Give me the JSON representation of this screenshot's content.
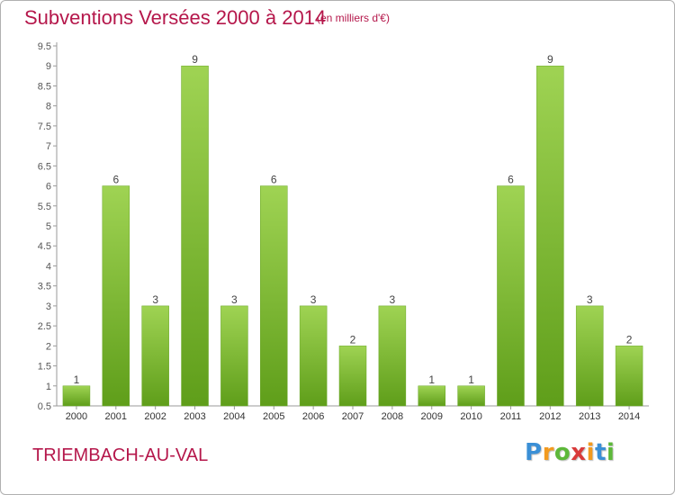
{
  "header": {
    "title": "Subventions Versées 2000 à 2014",
    "subtitle": "(en milliers d'€)"
  },
  "footer": {
    "commune": "TRIEMBACH-AU-VAL",
    "logo_letters": [
      {
        "char": "P",
        "color": "#3a8fd6"
      },
      {
        "char": "r",
        "color": "#f29a1f"
      },
      {
        "char": "o",
        "color": "#5db83a"
      },
      {
        "char": "x",
        "color": "#d93a3a"
      },
      {
        "char": "i",
        "color": "#f29a1f"
      },
      {
        "char": "t",
        "color": "#3a8fd6"
      },
      {
        "char": "i",
        "color": "#5db83a"
      }
    ]
  },
  "chart_data": {
    "type": "bar",
    "categories": [
      "2000",
      "2001",
      "2002",
      "2003",
      "2004",
      "2005",
      "2006",
      "2007",
      "2008",
      "2009",
      "2010",
      "2011",
      "2012",
      "2013",
      "2014"
    ],
    "values": [
      1,
      6,
      3,
      9,
      3,
      6,
      3,
      2,
      3,
      1,
      1,
      6,
      9,
      3,
      2
    ],
    "data_labels": [
      "1",
      "6",
      "3",
      "9",
      "3",
      "6",
      "3",
      "2",
      "3",
      "1",
      "1",
      "6",
      "9",
      "3",
      "2"
    ],
    "yticks": [
      "0.5",
      "1",
      "1.5",
      "2",
      "2.5",
      "3",
      "3.5",
      "4",
      "4.5",
      "5",
      "5.5",
      "6",
      "6.5",
      "7",
      "7.5",
      "8",
      "8.5",
      "9",
      "9.5"
    ],
    "ylim": [
      0.5,
      9.5
    ],
    "grid": false,
    "bar_color_light": "#9fd353",
    "bar_color_dark": "#5f9e1a",
    "title": "Subventions Versées 2000 à 2014",
    "xlabel": "",
    "ylabel": ""
  }
}
